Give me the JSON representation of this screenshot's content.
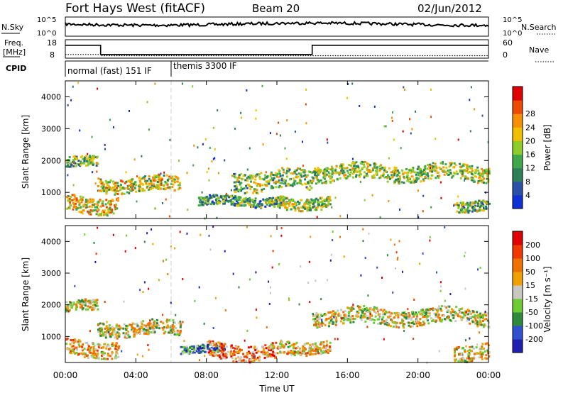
{
  "header": {
    "title": "Fort Hays West (fitACF)",
    "beam": "Beam 20",
    "date": "02/Jun/2012"
  },
  "top_panels": {
    "nsky_label": "N.Sky",
    "nsky_ticks": [
      "10^5",
      "10^0"
    ],
    "nsearch_label": "N.Search",
    "nsearch_ticks": [
      "10^5",
      "10^0"
    ],
    "freq_label_1": "Freq.",
    "freq_label_2": "[MHz]",
    "freq_ticks": [
      "18",
      "8"
    ],
    "nave_label": "Nave",
    "nave_ticks": [
      "60",
      "0"
    ],
    "cpid_label": "CPID",
    "cpid_modes": [
      {
        "label": "normal (fast) 151 IF",
        "start_hour": 0,
        "end_hour": 6
      },
      {
        "label": "themis 3300 IF",
        "start_hour": 6,
        "end_hour": 24
      }
    ],
    "freq_mhz": [
      [
        0,
        15
      ],
      [
        2,
        15
      ],
      [
        2,
        10
      ],
      [
        14,
        10
      ],
      [
        14,
        15
      ],
      [
        24,
        15
      ]
    ],
    "nave": [
      [
        0,
        12
      ],
      [
        2,
        12
      ],
      [
        2,
        8
      ],
      [
        24,
        8
      ]
    ]
  },
  "chart_data": [
    {
      "type": "heatmap",
      "name": "power",
      "ylabel": "Slant Range [km]",
      "xlabel": "",
      "ylim": [
        180,
        4500
      ],
      "xlim": [
        0,
        24
      ],
      "y_ticks": [
        "1000",
        "2000",
        "3000",
        "4000"
      ],
      "colorbar_label": "Power [dB]",
      "colorbar_ticks": [
        "4",
        "8",
        "12",
        "16",
        "20",
        "24",
        "28"
      ],
      "colorbar_colors": [
        "#1030d8",
        "#2a50a8",
        "#2e7f58",
        "#3fa84a",
        "#8ccd2a",
        "#f0c000",
        "#f59000",
        "#f04a00",
        "#e00000"
      ],
      "echo_bands": [
        {
          "t0": 0,
          "t1": 1.8,
          "r0": 1800,
          "r1": 2150,
          "level": 0.4
        },
        {
          "t0": 1.8,
          "t1": 6.5,
          "r0": 1050,
          "r1": 1500,
          "level": 0.55
        },
        {
          "t0": 0,
          "t1": 3,
          "r0": 400,
          "r1": 900,
          "level": 0.6
        },
        {
          "t0": 7.5,
          "t1": 12.5,
          "r0": 600,
          "r1": 900,
          "level": 0.35
        },
        {
          "t0": 9.5,
          "t1": 14,
          "r0": 1100,
          "r1": 1700,
          "level": 0.45
        },
        {
          "t0": 14,
          "t1": 24,
          "r0": 1400,
          "r1": 1900,
          "level": 0.5
        },
        {
          "t0": 12,
          "t1": 15,
          "r0": 500,
          "r1": 900,
          "level": 0.5
        },
        {
          "t0": 22,
          "t1": 24,
          "r0": 450,
          "r1": 800,
          "level": 0.45
        }
      ]
    },
    {
      "type": "heatmap",
      "name": "velocity",
      "ylabel": "Slant Range [km]",
      "xlabel": "Time UT",
      "ylim": [
        180,
        4500
      ],
      "xlim": [
        0,
        24
      ],
      "y_ticks": [
        "1000",
        "2000",
        "3000",
        "4000"
      ],
      "x_ticks": [
        "00:00",
        "04:00",
        "08:00",
        "12:00",
        "16:00",
        "20:00",
        "00:00"
      ],
      "colorbar_label": "Velocity [m s⁻¹]",
      "colorbar_ticks": [
        "200",
        "100",
        "50",
        "15",
        "-15",
        "-50",
        "-100",
        "-200"
      ],
      "colorbar_colors": [
        "#2020b0",
        "#3050d0",
        "#2e8a3a",
        "#6ccc30",
        "#c8c8c0",
        "#f0a000",
        "#f07000",
        "#f03800",
        "#e00000"
      ],
      "echo_bands": [
        {
          "t0": 0,
          "t1": 1.8,
          "r0": 1800,
          "r1": 2150,
          "level": 0.5
        },
        {
          "t0": 1.8,
          "t1": 6.5,
          "r0": 1050,
          "r1": 1500,
          "level": 0.5
        },
        {
          "t0": 0,
          "t1": 3,
          "r0": 400,
          "r1": 900,
          "level": 0.6
        },
        {
          "t0": 6.5,
          "t1": 9,
          "r0": 500,
          "r1": 750,
          "level": 0.3
        },
        {
          "t0": 8,
          "t1": 12,
          "r0": 300,
          "r1": 800,
          "level": 0.7
        },
        {
          "t0": 14,
          "t1": 24,
          "r0": 1400,
          "r1": 1900,
          "level": 0.5
        },
        {
          "t0": 12,
          "t1": 15,
          "r0": 500,
          "r1": 900,
          "level": 0.6
        },
        {
          "t0": 22,
          "t1": 24,
          "r0": 300,
          "r1": 800,
          "level": 0.55
        }
      ]
    }
  ]
}
